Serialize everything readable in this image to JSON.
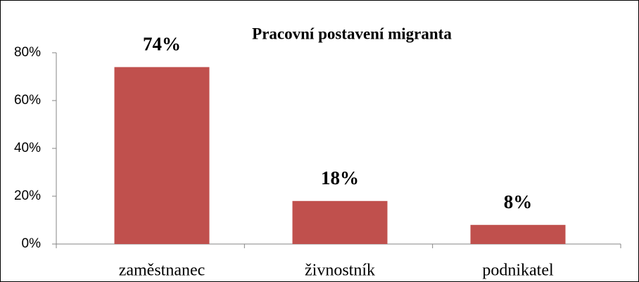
{
  "chart_data": {
    "type": "bar",
    "title": "Pracovní postavení migranta",
    "categories": [
      "zaměstnanec",
      "živnostník",
      "podnikatel"
    ],
    "values": [
      74,
      18,
      8
    ],
    "value_labels": [
      "74%",
      "18%",
      "8%"
    ],
    "color": "#c0504d",
    "ylim": [
      0,
      80
    ],
    "yticks": [
      {
        "value": 0,
        "label": "0%"
      },
      {
        "value": 20,
        "label": "20%"
      },
      {
        "value": 40,
        "label": "40%"
      },
      {
        "value": 60,
        "label": "60%"
      },
      {
        "value": 80,
        "label": "80%"
      }
    ]
  }
}
